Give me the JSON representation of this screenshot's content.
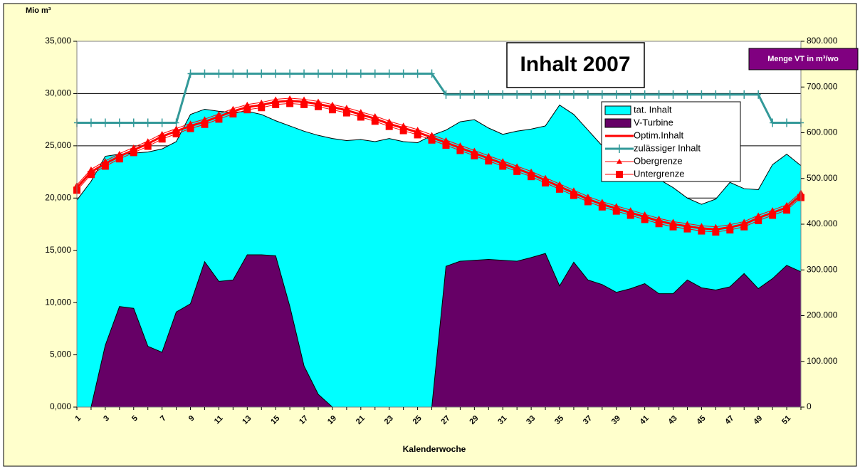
{
  "chart_data": {
    "type": "area-line",
    "title": "Inhalt 2007",
    "y_label": "Mio m³",
    "y2_label": "Menge VT in m³/wo",
    "x_label": "Kalenderwoche",
    "categories": [
      1,
      null,
      3,
      null,
      5,
      null,
      7,
      null,
      9,
      null,
      11,
      null,
      13,
      null,
      15,
      null,
      17,
      null,
      19,
      null,
      21,
      null,
      23,
      null,
      25,
      null,
      27,
      null,
      29,
      null,
      31,
      null,
      33,
      null,
      35,
      null,
      37,
      null,
      39,
      null,
      41,
      null,
      43,
      null,
      45,
      null,
      47,
      null,
      49,
      null,
      51,
      null
    ],
    "ylim": [
      0,
      35000
    ],
    "yticks": [
      {
        "value": 0,
        "label": "0,000"
      },
      {
        "value": 5000,
        "label": "5,000"
      },
      {
        "value": 10000,
        "label": "10,000"
      },
      {
        "value": 15000,
        "label": "15,000"
      },
      {
        "value": 20000,
        "label": "20,000"
      },
      {
        "value": 25000,
        "label": "25,000"
      },
      {
        "value": 30000,
        "label": "30,000"
      },
      {
        "value": 35000,
        "label": "35,000"
      }
    ],
    "y2lim": [
      0,
      800000
    ],
    "y2ticks": [
      0,
      {
        "value": 100000,
        "label": "100.000"
      },
      {
        "value": 200000,
        "label": "200.000"
      },
      {
        "value": 300000,
        "label": "300.000"
      },
      {
        "value": 400000,
        "label": "400.000"
      },
      {
        "value": 500000,
        "label": "500.000"
      },
      {
        "value": 600000,
        "label": "600.000"
      },
      {
        "value": 700000,
        "label": "700.000"
      },
      {
        "value": 800000,
        "label": "800.000"
      }
    ],
    "grid": true,
    "series": [
      {
        "name": "tat. Inhalt",
        "kind": "area",
        "color": "#00ffff",
        "values": [
          19800,
          21600,
          24000,
          24200,
          24300,
          24400,
          24700,
          25400,
          28000,
          28500,
          28300,
          28200,
          28300,
          28000,
          27400,
          26900,
          26400,
          26000,
          25700,
          25500,
          25600,
          25400,
          25700,
          25400,
          25300,
          26000,
          26500,
          27300,
          27500,
          26700,
          26100,
          26400,
          26600,
          26900,
          28900,
          28000,
          26500,
          25000,
          24000,
          23500,
          22500,
          21800,
          21000,
          20000,
          19400,
          19900,
          21500,
          20900,
          20800,
          23200,
          24200,
          23100
        ]
      },
      {
        "name": "V-Turbine",
        "kind": "area",
        "axis": "y2",
        "color": "#660066",
        "values": [
          0,
          0,
          135000,
          220000,
          216000,
          133000,
          120000,
          208000,
          226000,
          318000,
          275000,
          278000,
          333000,
          333000,
          331000,
          220000,
          90000,
          28000,
          0,
          0,
          0,
          0,
          0,
          0,
          0,
          0,
          308000,
          319000,
          321000,
          323000,
          321000,
          319000,
          327000,
          336000,
          265000,
          317000,
          278000,
          268000,
          251000,
          259000,
          270000,
          248000,
          248000,
          278000,
          261000,
          256000,
          263000,
          292000,
          259000,
          281000,
          310000,
          296000
        ]
      },
      {
        "name": "Optim.Inhalt",
        "kind": "line",
        "color": "#ff0000",
        "values": [
          21000,
          22500,
          23300,
          24000,
          24600,
          25200,
          25900,
          26400,
          26900,
          27300,
          27800,
          28300,
          28700,
          28900,
          29200,
          29300,
          29200,
          29000,
          28700,
          28400,
          28000,
          27600,
          27100,
          26700,
          26300,
          25800,
          25300,
          24800,
          24300,
          23800,
          23300,
          22800,
          22300,
          21700,
          21100,
          20500,
          19900,
          19400,
          19000,
          18600,
          18200,
          17800,
          17500,
          17300,
          17100,
          17000,
          17200,
          17500,
          18100,
          18600,
          19100,
          20300
        ]
      },
      {
        "name": "zulässiger Inhalt",
        "kind": "line",
        "marker": "cross",
        "color": "#339999",
        "values": [
          27200,
          27200,
          27200,
          27200,
          27200,
          27200,
          27200,
          27200,
          31900,
          31900,
          31900,
          31900,
          31900,
          31900,
          31900,
          31900,
          31900,
          31900,
          31900,
          31900,
          31900,
          31900,
          31900,
          31900,
          31900,
          31900,
          29900,
          29900,
          29900,
          29900,
          29900,
          29900,
          29900,
          29900,
          29900,
          29900,
          29900,
          29900,
          29900,
          29900,
          29900,
          29900,
          29900,
          29900,
          29900,
          29900,
          29900,
          29900,
          29900,
          27200,
          27200,
          27200
        ]
      },
      {
        "name": "Obergrenze",
        "kind": "line",
        "marker": "triangle",
        "color": "#ff0000",
        "values": [
          21250,
          22750,
          23550,
          24250,
          24850,
          25450,
          26150,
          26650,
          27150,
          27550,
          28050,
          28550,
          28950,
          29150,
          29450,
          29550,
          29450,
          29250,
          28950,
          28650,
          28250,
          27850,
          27350,
          26950,
          26550,
          26050,
          25550,
          25050,
          24550,
          24050,
          23550,
          23050,
          22550,
          21950,
          21350,
          20750,
          20150,
          19650,
          19250,
          18850,
          18450,
          18050,
          17750,
          17550,
          17350,
          17250,
          17450,
          17750,
          18350,
          18850,
          19350,
          20550
        ]
      },
      {
        "name": "Untergrenze",
        "kind": "line",
        "marker": "square",
        "color": "#ff0000",
        "values": [
          20750,
          22250,
          23050,
          23750,
          24350,
          24950,
          25650,
          26150,
          26650,
          27050,
          27550,
          28050,
          28450,
          28650,
          28950,
          29050,
          28950,
          28750,
          28450,
          28150,
          27750,
          27350,
          26850,
          26450,
          26050,
          25550,
          25050,
          24550,
          24050,
          23550,
          23050,
          22550,
          22050,
          21450,
          20850,
          20250,
          19650,
          19150,
          18750,
          18350,
          17950,
          17550,
          17250,
          17050,
          16850,
          16750,
          16950,
          17250,
          17850,
          18350,
          18850,
          20050
        ]
      }
    ]
  }
}
